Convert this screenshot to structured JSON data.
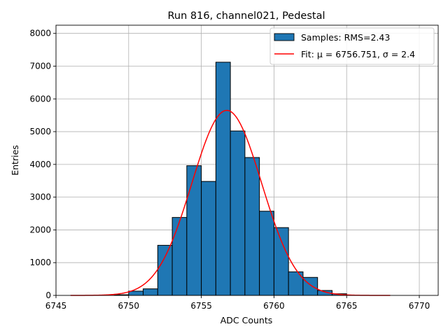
{
  "chart_data": {
    "type": "bar",
    "title": "Run 816, channel021, Pedestal",
    "xlabel": "ADC Counts",
    "ylabel": "Entries",
    "xlim": [
      6745,
      6771.3
    ],
    "ylim": [
      0,
      8250
    ],
    "xticks": [
      6745,
      6750,
      6755,
      6760,
      6765,
      6770
    ],
    "yticks": [
      0,
      1000,
      2000,
      3000,
      4000,
      5000,
      6000,
      7000,
      8000
    ],
    "grid": true,
    "legend_position": "top-right",
    "bar_color": "#1f77b4",
    "fit_color": "#ff0000",
    "legend": {
      "samples_label": "Samples: RMS=2.43",
      "fit_label": "Fit: μ = 6756.751, σ = 2.4"
    },
    "bin_edges": [
      6749.0,
      6750.0,
      6751.0,
      6752.0,
      6753.0,
      6754.0,
      6755.0,
      6756.0,
      6757.0,
      6758.0,
      6759.0,
      6760.0,
      6761.0,
      6762.0,
      6763.0,
      6764.0,
      6765.0
    ],
    "counts": [
      20,
      130,
      200,
      1530,
      2380,
      3960,
      3480,
      7120,
      5020,
      4210,
      2570,
      2070,
      720,
      550,
      150,
      50
    ],
    "fit": {
      "mu": 6756.751,
      "sigma": 2.4,
      "amplitude": 5650,
      "x_range": [
        6746,
        6768
      ]
    }
  }
}
